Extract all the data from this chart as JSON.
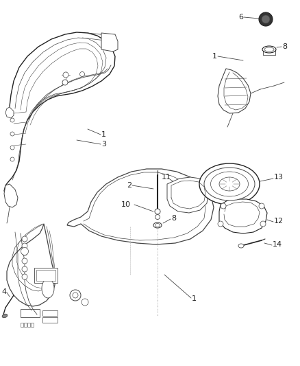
{
  "background_color": "#ffffff",
  "line_color": "#444444",
  "line_color_dark": "#222222",
  "fig_w": 4.38,
  "fig_h": 5.33,
  "dpi": 100
}
